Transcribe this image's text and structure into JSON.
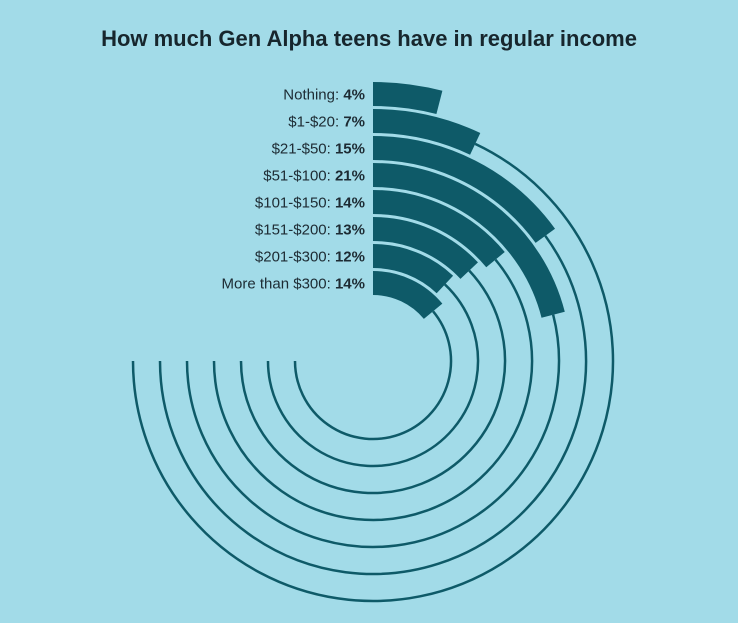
{
  "chart_data": {
    "type": "radial-bar",
    "title": "How much Gen Alpha teens have in regular income",
    "categories": [
      "Nothing",
      "$1-$20",
      "$21-$50",
      "$51-$100",
      "$101-$150",
      "$151-$200",
      "$201-$300",
      "More than $300"
    ],
    "values": [
      4,
      7,
      15,
      21,
      14,
      13,
      12,
      14
    ],
    "value_labels": [
      "4%",
      "7%",
      "15%",
      "21%",
      "14%",
      "13%",
      "12%",
      "14%"
    ],
    "unit": "%",
    "scale_max": 100,
    "colors": {
      "bar": "#0e5a68",
      "background": "#a2dbe8",
      "text": "#17262d"
    }
  }
}
